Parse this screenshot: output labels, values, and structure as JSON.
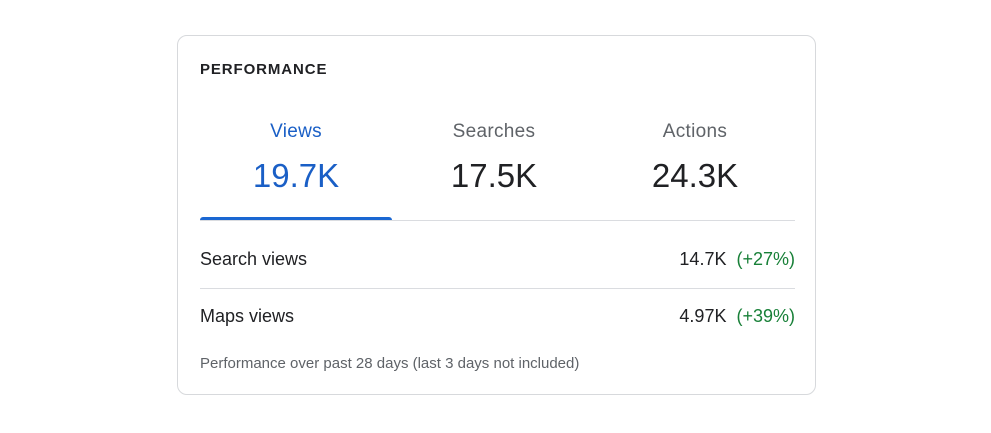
{
  "card": {
    "title": "PERFORMANCE",
    "tabs": [
      {
        "label": "Views",
        "value": "19.7K",
        "active": true
      },
      {
        "label": "Searches",
        "value": "17.5K",
        "active": false
      },
      {
        "label": "Actions",
        "value": "24.3K",
        "active": false
      }
    ],
    "rows": [
      {
        "label": "Search views",
        "value": "14.7K",
        "change": "(+27%)"
      },
      {
        "label": "Maps views",
        "value": "4.97K",
        "change": "(+39%)"
      }
    ],
    "footnote": "Performance over past 28 days (last 3 days not included)"
  },
  "colors": {
    "accent": "#1a67d2",
    "positive": "#188038",
    "border": "#d7d9dc",
    "muted_text": "#5f6368"
  }
}
